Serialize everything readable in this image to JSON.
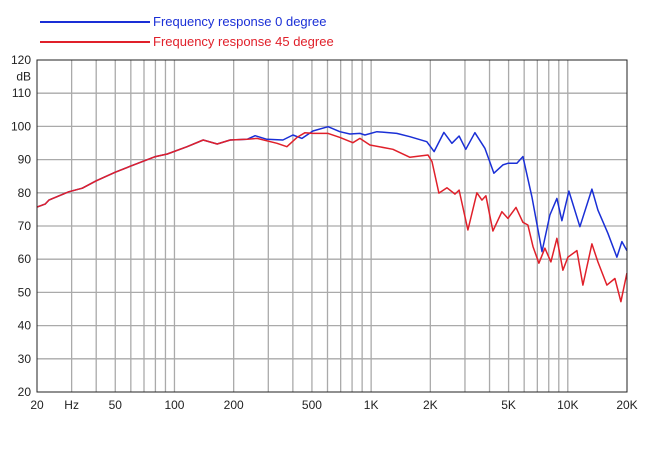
{
  "chart_data": {
    "type": "line",
    "title": "",
    "xlabel": "Hz",
    "ylabel": "dB",
    "xscale": "log",
    "xlim": [
      20,
      20000
    ],
    "ylim": [
      20,
      120
    ],
    "grid": true,
    "legend_position": "top-left",
    "x_ticks": [
      {
        "value": 20,
        "label": "20"
      },
      {
        "value": 30,
        "label": "Hz"
      },
      {
        "value": 50,
        "label": "50"
      },
      {
        "value": 100,
        "label": "100"
      },
      {
        "value": 200,
        "label": "200"
      },
      {
        "value": 500,
        "label": "500"
      },
      {
        "value": 1000,
        "label": "1K"
      },
      {
        "value": 2000,
        "label": "2K"
      },
      {
        "value": 5000,
        "label": "5K"
      },
      {
        "value": 10000,
        "label": "10K"
      },
      {
        "value": 20000,
        "label": "20K"
      }
    ],
    "y_ticks": [
      20,
      30,
      40,
      50,
      60,
      70,
      80,
      90,
      100,
      110,
      120
    ],
    "ylabel_tick_value": 115,
    "series": [
      {
        "name": "Frequency response 0 degree",
        "color": "#1a2fd6",
        "points": [
          [
            20,
            75.7
          ],
          [
            22,
            76.6
          ],
          [
            23,
            77.8
          ],
          [
            29,
            80.3
          ],
          [
            34,
            81.4
          ],
          [
            40,
            83.6
          ],
          [
            50,
            86.2
          ],
          [
            59,
            87.9
          ],
          [
            80,
            90.9
          ],
          [
            92,
            91.7
          ],
          [
            116,
            93.9
          ],
          [
            140,
            95.9
          ],
          [
            165,
            94.7
          ],
          [
            192,
            95.9
          ],
          [
            234,
            96.1
          ],
          [
            257,
            97.2
          ],
          [
            295,
            96.1
          ],
          [
            356,
            95.9
          ],
          [
            400,
            97.4
          ],
          [
            445,
            96.4
          ],
          [
            506,
            98.6
          ],
          [
            604,
            99.9
          ],
          [
            694,
            98.4
          ],
          [
            780,
            97.7
          ],
          [
            877,
            97.9
          ],
          [
            930,
            97.4
          ],
          [
            1070,
            98.4
          ],
          [
            1350,
            97.9
          ],
          [
            1575,
            96.9
          ],
          [
            1920,
            95.4
          ],
          [
            2090,
            92.4
          ],
          [
            2345,
            98.2
          ],
          [
            2575,
            94.9
          ],
          [
            2800,
            97.1
          ],
          [
            3030,
            93.1
          ],
          [
            3370,
            98.1
          ],
          [
            3790,
            93.4
          ],
          [
            4210,
            85.9
          ],
          [
            4680,
            88.4
          ],
          [
            4960,
            88.9
          ],
          [
            5510,
            88.9
          ],
          [
            5910,
            90.9
          ],
          [
            6570,
            78.8
          ],
          [
            7390,
            62.3
          ],
          [
            8110,
            73.3
          ],
          [
            8805,
            78.3
          ],
          [
            9335,
            71.6
          ],
          [
            10130,
            80.5
          ],
          [
            11525,
            69.8
          ],
          [
            13260,
            81.1
          ],
          [
            14225,
            74.8
          ],
          [
            15990,
            67.8
          ],
          [
            17770,
            60.6
          ],
          [
            18840,
            65.3
          ],
          [
            19980,
            62.6
          ]
        ]
      },
      {
        "name": "Frequency response 45 degree",
        "color": "#e0202a",
        "points": [
          [
            20,
            75.7
          ],
          [
            22,
            76.6
          ],
          [
            23,
            77.8
          ],
          [
            29,
            80.3
          ],
          [
            34,
            81.4
          ],
          [
            40,
            83.6
          ],
          [
            50,
            86.2
          ],
          [
            59,
            87.9
          ],
          [
            80,
            90.9
          ],
          [
            92,
            91.7
          ],
          [
            116,
            93.9
          ],
          [
            140,
            95.9
          ],
          [
            165,
            94.7
          ],
          [
            192,
            95.9
          ],
          [
            234,
            96.1
          ],
          [
            263,
            96.4
          ],
          [
            332,
            94.9
          ],
          [
            373,
            93.9
          ],
          [
            420,
            96.7
          ],
          [
            461,
            98.1
          ],
          [
            506,
            97.9
          ],
          [
            604,
            97.9
          ],
          [
            694,
            96.7
          ],
          [
            808,
            95.1
          ],
          [
            877,
            96.4
          ],
          [
            986,
            94.4
          ],
          [
            1290,
            93.1
          ],
          [
            1575,
            90.7
          ],
          [
            1945,
            91.4
          ],
          [
            2040,
            89.4
          ],
          [
            2210,
            79.9
          ],
          [
            2430,
            81.5
          ],
          [
            2670,
            79.6
          ],
          [
            2800,
            80.8
          ],
          [
            3105,
            68.8
          ],
          [
            3450,
            80.0
          ],
          [
            3660,
            77.8
          ],
          [
            3835,
            79.1
          ],
          [
            4160,
            68.5
          ],
          [
            4625,
            74.3
          ],
          [
            4960,
            72.3
          ],
          [
            5450,
            75.6
          ],
          [
            5910,
            71.1
          ],
          [
            6270,
            70.3
          ],
          [
            6650,
            63.8
          ],
          [
            7130,
            58.8
          ],
          [
            7650,
            63.3
          ],
          [
            8205,
            59.2
          ],
          [
            8805,
            66.3
          ],
          [
            9445,
            56.7
          ],
          [
            10015,
            60.6
          ],
          [
            11130,
            62.6
          ],
          [
            11940,
            52.2
          ],
          [
            13260,
            64.6
          ],
          [
            14225,
            59.2
          ],
          [
            15805,
            52.2
          ],
          [
            17360,
            54.2
          ],
          [
            18620,
            47.2
          ],
          [
            19980,
            55.8
          ]
        ]
      }
    ]
  }
}
